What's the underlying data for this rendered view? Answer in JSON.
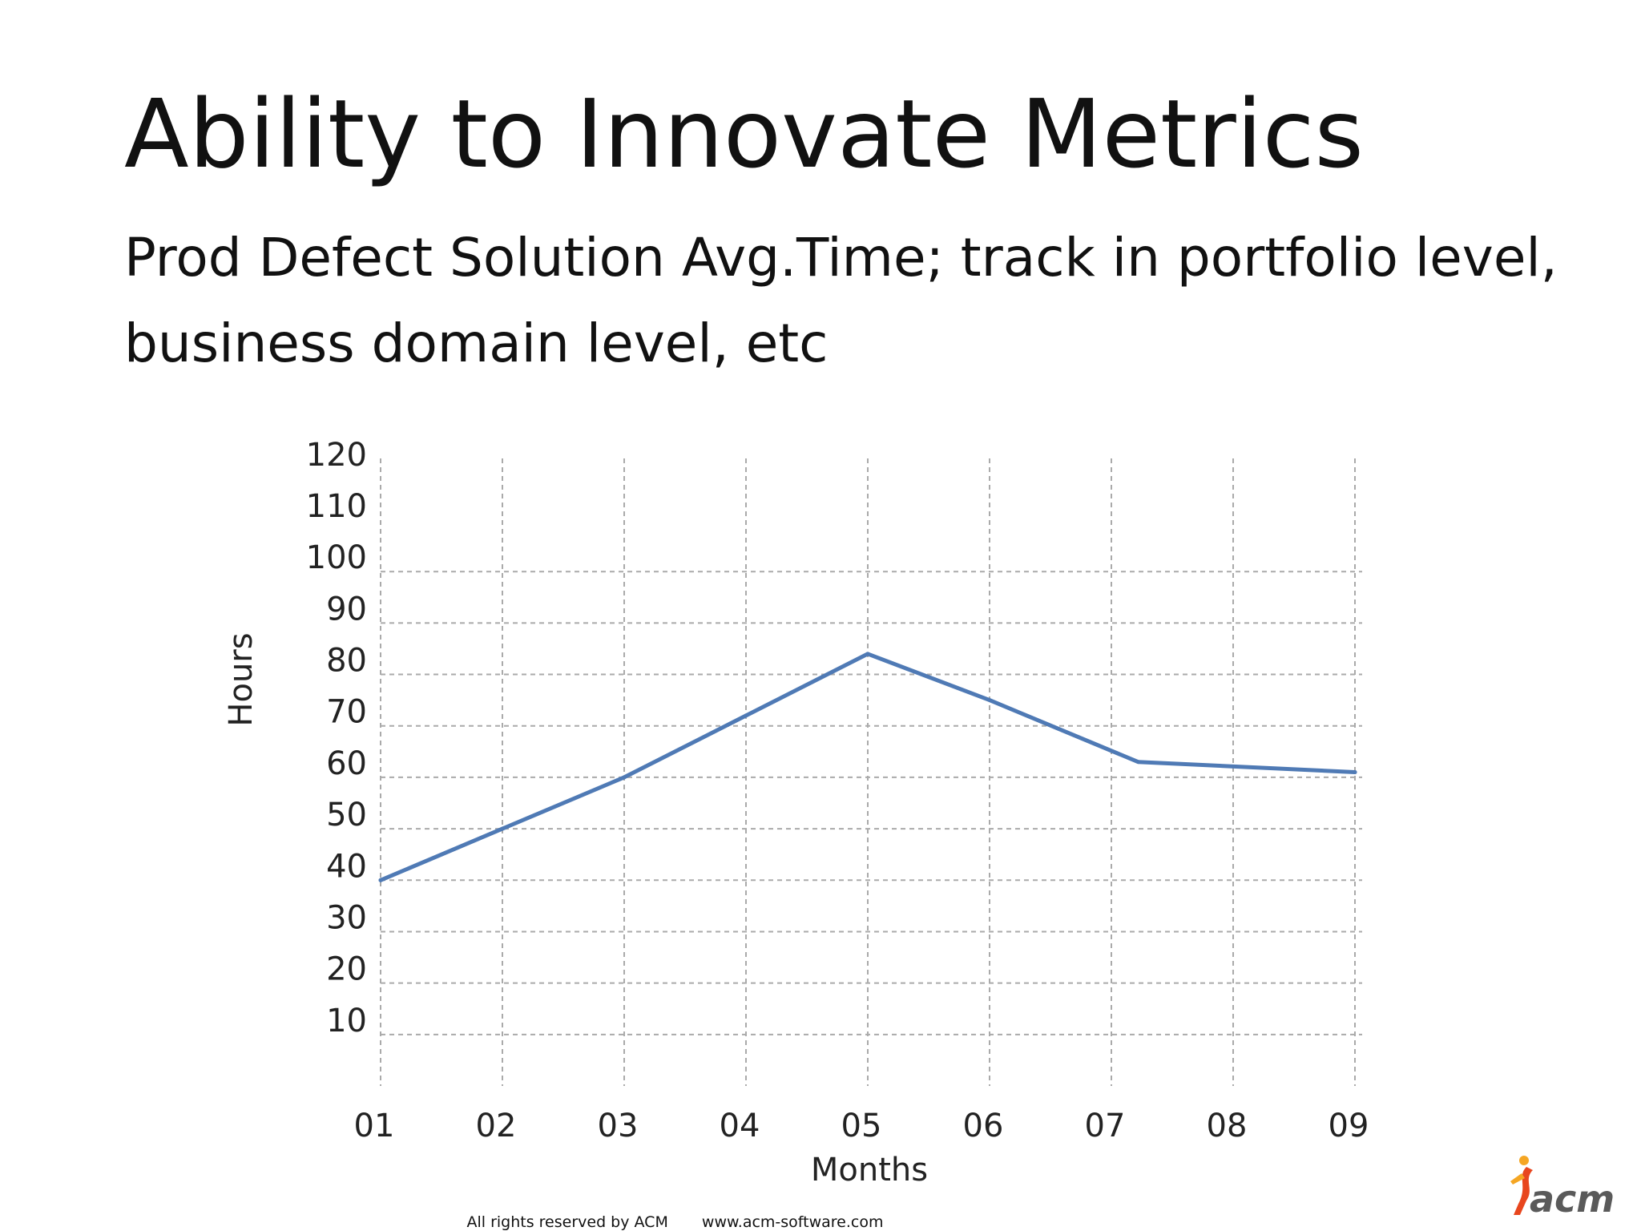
{
  "slide": {
    "title": "Ability to Innovate Metrics",
    "subtitle": "Prod Defect Solution Avg.Time; track in portfolio level, business domain level, etc"
  },
  "chart_data": {
    "type": "line",
    "categories": [
      "01",
      "02",
      "03",
      "04",
      "05",
      "06",
      "07",
      "08",
      "09"
    ],
    "x": [
      0,
      1,
      2,
      3,
      4,
      5,
      6.22,
      8
    ],
    "series": [
      {
        "values": [
          40,
          50,
          60,
          72,
          84,
          75,
          63,
          61
        ],
        "color": "#4f7ab5"
      }
    ],
    "xlabel": "Months",
    "ylabel": "Hours",
    "yticks": [
      10,
      20,
      30,
      40,
      50,
      60,
      70,
      80,
      90,
      100,
      110,
      120
    ],
    "ylim": [
      0,
      122
    ],
    "grid": true,
    "grid_style": "dashed",
    "grid_color": "#aaaaaa"
  },
  "footer": {
    "rights": "All rights reserved by ACM",
    "url": "www.acm-software.com"
  },
  "logo": {
    "text": "acm",
    "icon": "acm-figure-logo-icon",
    "colors": [
      "#e8461e",
      "#f5a623",
      "#5a5a5a"
    ]
  }
}
